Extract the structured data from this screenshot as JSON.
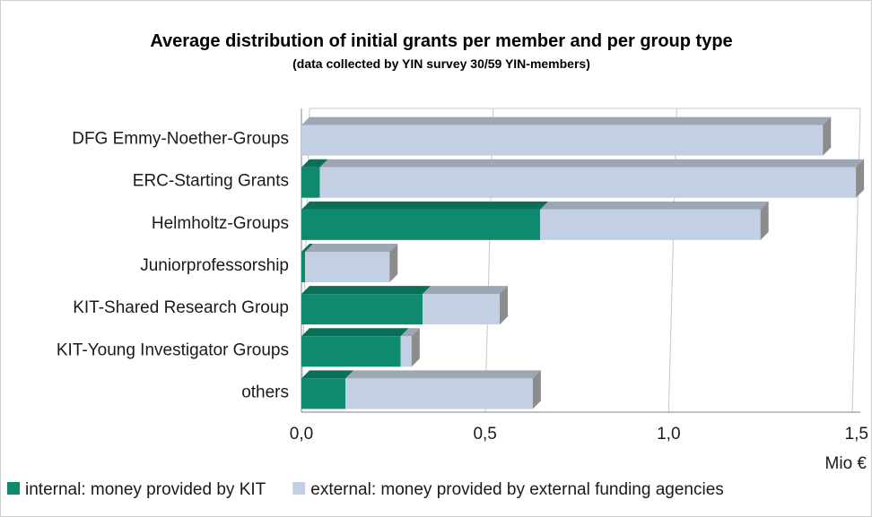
{
  "chart_data": {
    "type": "bar",
    "orientation": "horizontal",
    "stacked": true,
    "title": "Average distribution of initial grants per member and per group type",
    "subtitle": "(data collected by YIN survey  30/59 YIN-members)",
    "categories": [
      "DFG Emmy-Noether-Groups",
      "ERC-Starting Grants",
      "Helmholtz-Groups",
      "Juniorprofessorship",
      "KIT-Shared Research Group",
      "KIT-Young Investigator Groups",
      "others"
    ],
    "series": [
      {
        "name": "internal: money provided by KIT",
        "color": "#0e8a6e",
        "values": [
          0.0,
          0.05,
          0.65,
          0.01,
          0.33,
          0.27,
          0.12
        ]
      },
      {
        "name": "external: money provided by external funding agencies",
        "color": "#c3cfe2",
        "values": [
          1.42,
          1.46,
          0.6,
          0.23,
          0.21,
          0.03,
          0.51
        ]
      }
    ],
    "xlim": [
      0,
      1.5
    ],
    "xticks": [
      "0,0",
      "0,5",
      "1,0",
      "1,5"
    ],
    "xunit": "Mio €",
    "grid": true,
    "legend": "bottom"
  }
}
